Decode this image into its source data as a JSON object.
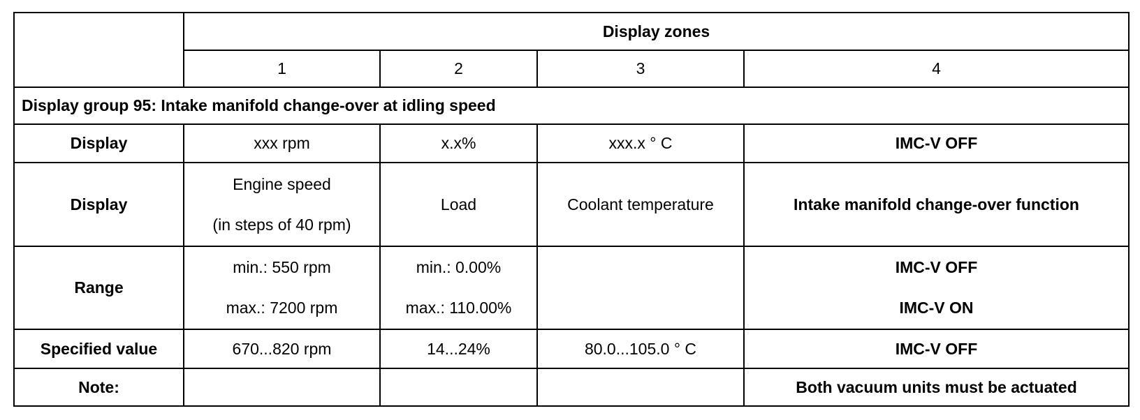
{
  "table": {
    "header": {
      "title": "Display zones",
      "zones": [
        "1",
        "2",
        "3",
        "4"
      ]
    },
    "group": "Display group 95: Intake manifold change-over at idling speed",
    "rows": [
      {
        "label": "Display",
        "cells": [
          [
            "xxx rpm"
          ],
          [
            "x.x%"
          ],
          [
            "xxx.x ° C"
          ],
          [
            "IMC-V OFF"
          ]
        ]
      },
      {
        "label": "Display",
        "cells": [
          [
            "Engine speed",
            "(in steps of 40 rpm)"
          ],
          [
            "Load"
          ],
          [
            "Coolant temperature"
          ],
          [
            "Intake manifold change-over function"
          ]
        ]
      },
      {
        "label": "Range",
        "cells": [
          [
            "min.: 550 rpm",
            "max.: 7200 rpm"
          ],
          [
            "min.: 0.00%",
            "max.: 110.00%"
          ],
          [],
          [
            "IMC-V OFF",
            "IMC-V ON"
          ]
        ]
      },
      {
        "label": "Specified value",
        "cells": [
          [
            "670...820 rpm"
          ],
          [
            "14...24%"
          ],
          [
            "80.0...105.0 ° C"
          ],
          [
            "IMC-V OFF"
          ]
        ]
      },
      {
        "label": "Note:",
        "cells": [
          [],
          [],
          [],
          [
            "Both vacuum units must be actuated"
          ]
        ]
      }
    ]
  }
}
